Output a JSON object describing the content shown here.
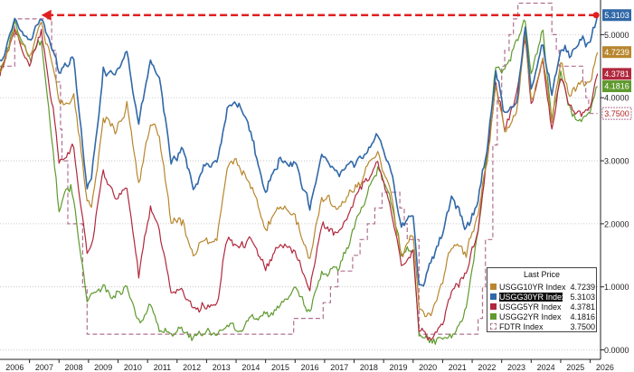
{
  "chart_data": {
    "type": "line",
    "title": "",
    "xlabel": "",
    "ylabel": "",
    "xlim": [
      2006.0,
      2026.35
    ],
    "ylim": [
      -0.15,
      5.55
    ],
    "x_ticks": [
      "2006",
      "2007",
      "2008",
      "2009",
      "2010",
      "2011",
      "2012",
      "2013",
      "2014",
      "2015",
      "2016",
      "2017",
      "2018",
      "2019",
      "2020",
      "2021",
      "2022",
      "2023",
      "2024",
      "2025",
      "2026"
    ],
    "y_ticks": [
      "0.0000",
      "1.0000",
      "2.0000",
      "3.0000",
      "4.0000",
      "5.0000"
    ],
    "y_tick_values": [
      0,
      1,
      2,
      3,
      4,
      5
    ],
    "grid": "horizontal dotted",
    "legend_position": "bottom-right",
    "legend_title": "Last Price",
    "reference_arrow": {
      "from": [
        2026.2,
        5.31
      ],
      "to": [
        2007.4,
        5.31
      ],
      "color": "#e02020"
    },
    "series": [
      {
        "name": "USGG10YR Index",
        "last": "4.7239",
        "last_value": 4.7239,
        "color": "#b8862e",
        "tag_text": "#ffffff",
        "style": "line",
        "points": [
          [
            2006.0,
            4.4
          ],
          [
            2006.5,
            5.1
          ],
          [
            2007.0,
            4.7
          ],
          [
            2007.4,
            5.2
          ],
          [
            2007.8,
            4.5
          ],
          [
            2008.0,
            3.9
          ],
          [
            2008.5,
            4.0
          ],
          [
            2008.95,
            2.4
          ],
          [
            2009.1,
            2.2
          ],
          [
            2009.5,
            3.7
          ],
          [
            2009.9,
            3.5
          ],
          [
            2010.3,
            3.9
          ],
          [
            2010.7,
            2.7
          ],
          [
            2011.1,
            3.5
          ],
          [
            2011.4,
            3.4
          ],
          [
            2011.8,
            2.0
          ],
          [
            2012.2,
            2.0
          ],
          [
            2012.55,
            1.5
          ],
          [
            2012.9,
            1.7
          ],
          [
            2013.35,
            1.7
          ],
          [
            2013.7,
            2.9
          ],
          [
            2014.0,
            3.0
          ],
          [
            2014.5,
            2.6
          ],
          [
            2015.0,
            1.9
          ],
          [
            2015.5,
            2.3
          ],
          [
            2016.0,
            2.1
          ],
          [
            2016.5,
            1.4
          ],
          [
            2016.9,
            2.4
          ],
          [
            2017.5,
            2.3
          ],
          [
            2018.0,
            2.5
          ],
          [
            2018.8,
            3.2
          ],
          [
            2019.2,
            2.6
          ],
          [
            2019.6,
            1.5
          ],
          [
            2020.0,
            1.8
          ],
          [
            2020.2,
            0.6
          ],
          [
            2020.6,
            0.55
          ],
          [
            2021.0,
            1.1
          ],
          [
            2021.3,
            1.7
          ],
          [
            2021.8,
            1.5
          ],
          [
            2022.2,
            2.2
          ],
          [
            2022.5,
            3.0
          ],
          [
            2022.8,
            4.2
          ],
          [
            2023.1,
            3.5
          ],
          [
            2023.5,
            3.8
          ],
          [
            2023.8,
            5.0
          ],
          [
            2024.0,
            3.9
          ],
          [
            2024.4,
            4.6
          ],
          [
            2024.7,
            3.7
          ],
          [
            2025.0,
            4.6
          ],
          [
            2025.3,
            4.0
          ],
          [
            2025.7,
            4.3
          ],
          [
            2026.0,
            4.2
          ],
          [
            2026.25,
            4.72
          ]
        ]
      },
      {
        "name": "USGG30YR Index",
        "last": "5.3103",
        "last_value": 5.3103,
        "color": "#3068a8",
        "tag_text": "#ffffff",
        "style": "line",
        "points": [
          [
            2006.0,
            4.6
          ],
          [
            2006.5,
            5.2
          ],
          [
            2007.0,
            4.85
          ],
          [
            2007.4,
            5.3
          ],
          [
            2007.8,
            4.7
          ],
          [
            2008.0,
            4.4
          ],
          [
            2008.5,
            4.6
          ],
          [
            2008.95,
            2.6
          ],
          [
            2009.1,
            2.7
          ],
          [
            2009.5,
            4.4
          ],
          [
            2009.9,
            4.4
          ],
          [
            2010.3,
            4.8
          ],
          [
            2010.7,
            3.6
          ],
          [
            2011.1,
            4.6
          ],
          [
            2011.4,
            4.3
          ],
          [
            2011.8,
            3.0
          ],
          [
            2012.2,
            3.2
          ],
          [
            2012.55,
            2.5
          ],
          [
            2012.9,
            2.9
          ],
          [
            2013.35,
            3.0
          ],
          [
            2013.7,
            3.8
          ],
          [
            2014.0,
            3.9
          ],
          [
            2014.5,
            3.4
          ],
          [
            2015.0,
            2.5
          ],
          [
            2015.5,
            3.1
          ],
          [
            2016.0,
            2.9
          ],
          [
            2016.5,
            2.2
          ],
          [
            2016.9,
            3.1
          ],
          [
            2017.5,
            2.8
          ],
          [
            2018.0,
            2.9
          ],
          [
            2018.8,
            3.4
          ],
          [
            2019.2,
            2.9
          ],
          [
            2019.6,
            2.0
          ],
          [
            2020.0,
            2.2
          ],
          [
            2020.2,
            1.0
          ],
          [
            2020.6,
            1.35
          ],
          [
            2021.0,
            1.9
          ],
          [
            2021.3,
            2.45
          ],
          [
            2021.8,
            1.9
          ],
          [
            2022.2,
            2.4
          ],
          [
            2022.5,
            3.2
          ],
          [
            2022.8,
            4.4
          ],
          [
            2023.1,
            3.7
          ],
          [
            2023.5,
            3.9
          ],
          [
            2023.8,
            5.1
          ],
          [
            2024.0,
            4.1
          ],
          [
            2024.4,
            4.8
          ],
          [
            2024.7,
            4.0
          ],
          [
            2025.0,
            4.8
          ],
          [
            2025.3,
            4.7
          ],
          [
            2025.7,
            4.9
          ],
          [
            2026.0,
            4.85
          ],
          [
            2026.25,
            5.31
          ]
        ]
      },
      {
        "name": "USGG5YR Index",
        "last": "4.3781",
        "last_value": 4.3781,
        "color": "#b0283c",
        "tag_text": "#ffffff",
        "style": "line",
        "points": [
          [
            2006.0,
            4.35
          ],
          [
            2006.5,
            5.1
          ],
          [
            2007.0,
            4.5
          ],
          [
            2007.4,
            5.0
          ],
          [
            2007.8,
            3.9
          ],
          [
            2008.0,
            3.0
          ],
          [
            2008.5,
            3.2
          ],
          [
            2008.95,
            1.5
          ],
          [
            2009.1,
            1.6
          ],
          [
            2009.5,
            2.9
          ],
          [
            2009.9,
            2.4
          ],
          [
            2010.3,
            2.6
          ],
          [
            2010.7,
            1.2
          ],
          [
            2011.1,
            2.3
          ],
          [
            2011.4,
            1.9
          ],
          [
            2011.8,
            0.9
          ],
          [
            2012.2,
            0.9
          ],
          [
            2012.55,
            0.65
          ],
          [
            2012.9,
            0.7
          ],
          [
            2013.35,
            0.7
          ],
          [
            2013.7,
            1.8
          ],
          [
            2014.0,
            1.6
          ],
          [
            2014.5,
            1.7
          ],
          [
            2015.0,
            1.3
          ],
          [
            2015.5,
            1.7
          ],
          [
            2016.0,
            1.5
          ],
          [
            2016.5,
            1.0
          ],
          [
            2016.9,
            2.0
          ],
          [
            2017.5,
            1.8
          ],
          [
            2018.0,
            2.4
          ],
          [
            2018.8,
            3.0
          ],
          [
            2019.2,
            2.3
          ],
          [
            2019.6,
            1.3
          ],
          [
            2020.0,
            1.6
          ],
          [
            2020.2,
            0.35
          ],
          [
            2020.6,
            0.22
          ],
          [
            2021.0,
            0.45
          ],
          [
            2021.3,
            0.95
          ],
          [
            2021.8,
            1.2
          ],
          [
            2022.2,
            2.0
          ],
          [
            2022.5,
            3.0
          ],
          [
            2022.8,
            4.3
          ],
          [
            2023.1,
            3.5
          ],
          [
            2023.5,
            4.0
          ],
          [
            2023.8,
            4.9
          ],
          [
            2024.0,
            3.85
          ],
          [
            2024.4,
            4.6
          ],
          [
            2024.7,
            3.5
          ],
          [
            2025.0,
            4.35
          ],
          [
            2025.3,
            3.9
          ],
          [
            2025.7,
            3.7
          ],
          [
            2026.0,
            3.8
          ],
          [
            2026.25,
            4.38
          ]
        ]
      },
      {
        "name": "USGG2YR Index",
        "last": "4.1816",
        "last_value": 4.1816,
        "color": "#5f9a2e",
        "tag_text": "#ffffff",
        "style": "line",
        "points": [
          [
            2006.0,
            4.4
          ],
          [
            2006.5,
            5.2
          ],
          [
            2007.0,
            4.6
          ],
          [
            2007.4,
            4.9
          ],
          [
            2007.8,
            3.2
          ],
          [
            2008.0,
            2.2
          ],
          [
            2008.4,
            2.6
          ],
          [
            2008.95,
            0.8
          ],
          [
            2009.1,
            0.9
          ],
          [
            2009.5,
            1.0
          ],
          [
            2009.9,
            0.8
          ],
          [
            2010.3,
            1.0
          ],
          [
            2010.7,
            0.45
          ],
          [
            2011.1,
            0.8
          ],
          [
            2011.4,
            0.35
          ],
          [
            2011.8,
            0.22
          ],
          [
            2012.2,
            0.28
          ],
          [
            2012.55,
            0.22
          ],
          [
            2012.9,
            0.25
          ],
          [
            2013.35,
            0.25
          ],
          [
            2013.7,
            0.45
          ],
          [
            2014.0,
            0.35
          ],
          [
            2014.5,
            0.5
          ],
          [
            2015.0,
            0.55
          ],
          [
            2015.5,
            0.7
          ],
          [
            2016.0,
            0.9
          ],
          [
            2016.5,
            0.65
          ],
          [
            2016.9,
            1.2
          ],
          [
            2017.5,
            1.35
          ],
          [
            2018.0,
            1.9
          ],
          [
            2018.8,
            2.9
          ],
          [
            2019.2,
            2.4
          ],
          [
            2019.6,
            1.5
          ],
          [
            2020.0,
            1.5
          ],
          [
            2020.2,
            0.2
          ],
          [
            2020.6,
            0.13
          ],
          [
            2021.0,
            0.12
          ],
          [
            2021.3,
            0.2
          ],
          [
            2021.8,
            0.7
          ],
          [
            2022.2,
            1.9
          ],
          [
            2022.5,
            3.1
          ],
          [
            2022.8,
            4.5
          ],
          [
            2023.1,
            4.4
          ],
          [
            2023.5,
            4.9
          ],
          [
            2023.8,
            5.15
          ],
          [
            2024.0,
            4.3
          ],
          [
            2024.4,
            5.0
          ],
          [
            2024.7,
            3.6
          ],
          [
            2025.0,
            4.3
          ],
          [
            2025.3,
            3.8
          ],
          [
            2025.7,
            3.55
          ],
          [
            2026.0,
            3.7
          ],
          [
            2026.25,
            4.18
          ]
        ]
      },
      {
        "name": "FDTR Index",
        "last": "3.7500",
        "last_value": 3.75,
        "color": "#b07090",
        "tag_text": "#b82020",
        "style": "step-dashed",
        "points": [
          [
            2006.0,
            4.5
          ],
          [
            2006.5,
            5.25
          ],
          [
            2007.7,
            5.25
          ],
          [
            2007.75,
            4.75
          ],
          [
            2007.9,
            4.25
          ],
          [
            2008.05,
            3.5
          ],
          [
            2008.1,
            3.0
          ],
          [
            2008.3,
            2.0
          ],
          [
            2008.8,
            1.0
          ],
          [
            2008.95,
            0.25
          ],
          [
            2015.95,
            0.25
          ],
          [
            2015.95,
            0.5
          ],
          [
            2016.95,
            0.5
          ],
          [
            2016.95,
            0.75
          ],
          [
            2017.2,
            1.0
          ],
          [
            2017.45,
            1.25
          ],
          [
            2017.95,
            1.5
          ],
          [
            2018.2,
            1.75
          ],
          [
            2018.45,
            2.0
          ],
          [
            2018.7,
            2.25
          ],
          [
            2018.95,
            2.5
          ],
          [
            2019.55,
            2.5
          ],
          [
            2019.55,
            2.25
          ],
          [
            2019.7,
            2.0
          ],
          [
            2019.8,
            1.75
          ],
          [
            2020.2,
            1.75
          ],
          [
            2020.2,
            0.25
          ],
          [
            2022.2,
            0.25
          ],
          [
            2022.2,
            0.5
          ],
          [
            2022.35,
            1.0
          ],
          [
            2022.45,
            1.75
          ],
          [
            2022.7,
            3.25
          ],
          [
            2022.85,
            4.0
          ],
          [
            2023.0,
            4.5
          ],
          [
            2023.1,
            4.75
          ],
          [
            2023.25,
            5.0
          ],
          [
            2023.4,
            5.25
          ],
          [
            2023.55,
            5.5
          ],
          [
            2024.7,
            5.5
          ],
          [
            2024.7,
            5.0
          ],
          [
            2024.85,
            4.75
          ],
          [
            2024.95,
            4.5
          ],
          [
            2025.7,
            4.5
          ],
          [
            2025.75,
            4.25
          ],
          [
            2025.85,
            4.0
          ],
          [
            2025.95,
            3.75
          ],
          [
            2026.25,
            3.75
          ]
        ]
      }
    ]
  }
}
